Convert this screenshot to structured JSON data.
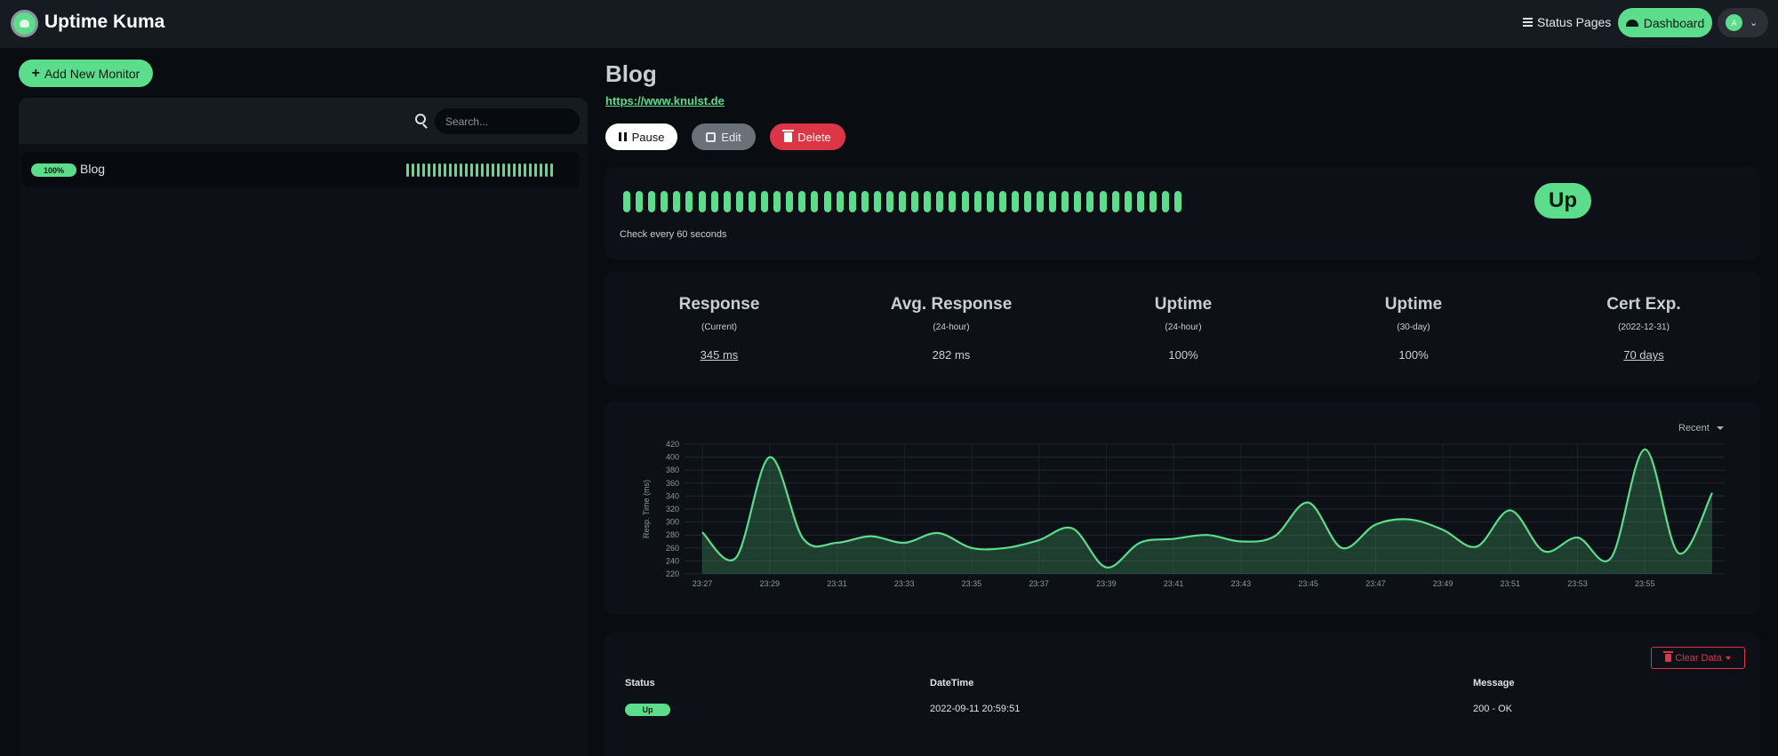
{
  "app": {
    "title": "Uptime Kuma"
  },
  "nav": {
    "status_pages": "Status Pages",
    "dashboard": "Dashboard",
    "avatar_initial": "A"
  },
  "sidebar": {
    "add_button": "Add New Monitor",
    "search_placeholder": "Search...",
    "monitors": [
      {
        "uptime_badge": "100%",
        "name": "Blog",
        "beats_count": 28
      }
    ]
  },
  "monitor": {
    "name": "Blog",
    "url": "https://www.knulst.de",
    "buttons": {
      "pause": "Pause",
      "edit": "Edit",
      "delete": "Delete"
    },
    "status": "Up",
    "check_interval": "Check every 60 seconds",
    "beats_count": 45
  },
  "stats": [
    {
      "label": "Response",
      "sub": "(Current)",
      "value": "345 ms",
      "link": true
    },
    {
      "label": "Avg. Response",
      "sub": "(24-hour)",
      "value": "282 ms",
      "link": false
    },
    {
      "label": "Uptime",
      "sub": "(24-hour)",
      "value": "100%",
      "link": false
    },
    {
      "label": "Uptime",
      "sub": "(30-day)",
      "value": "100%",
      "link": false
    },
    {
      "label": "Cert Exp.",
      "sub": "(2022-12-31)",
      "value": "70 days",
      "link": true
    }
  ],
  "chart_range": "Recent",
  "chart_data": {
    "type": "area",
    "ylabel": "Resp. Time (ms)",
    "ylim": [
      220,
      420
    ],
    "yticks": [
      220,
      240,
      260,
      280,
      300,
      320,
      340,
      360,
      380,
      400,
      420
    ],
    "xticks": [
      "23:27",
      "23:29",
      "23:31",
      "23:33",
      "23:35",
      "23:37",
      "23:39",
      "23:41",
      "23:43",
      "23:45",
      "23:47",
      "23:49",
      "23:51",
      "23:53",
      "23:55"
    ],
    "x": [
      "23:27",
      "23:28",
      "23:29",
      "23:30",
      "23:31",
      "23:32",
      "23:33",
      "23:34",
      "23:35",
      "23:36",
      "23:37",
      "23:38",
      "23:39",
      "23:40",
      "23:41",
      "23:42",
      "23:43",
      "23:44",
      "23:45",
      "23:46",
      "23:47",
      "23:48",
      "23:49",
      "23:50",
      "23:51",
      "23:52",
      "23:53",
      "23:54",
      "23:55",
      "23:56",
      "23:57"
    ],
    "series": [
      {
        "values": [
          284,
          245,
          400,
          274,
          268,
          278,
          268,
          283,
          260,
          260,
          272,
          290,
          230,
          268,
          274,
          280,
          270,
          278,
          330,
          260,
          296,
          304,
          288,
          262,
          318,
          255,
          276,
          245,
          412,
          252,
          345
        ]
      }
    ],
    "line_color": "#5cdd8b",
    "grid": true
  },
  "table": {
    "clear_button": "Clear Data",
    "headers": {
      "status": "Status",
      "datetime": "DateTime",
      "message": "Message"
    },
    "rows": [
      {
        "status": "Up",
        "datetime": "2022-09-11 20:59:51",
        "message": "200 - OK"
      }
    ]
  },
  "colors": {
    "accent": "#5cdd8b",
    "danger": "#dc3545",
    "background": "#090c10",
    "card": "#0d1117"
  }
}
